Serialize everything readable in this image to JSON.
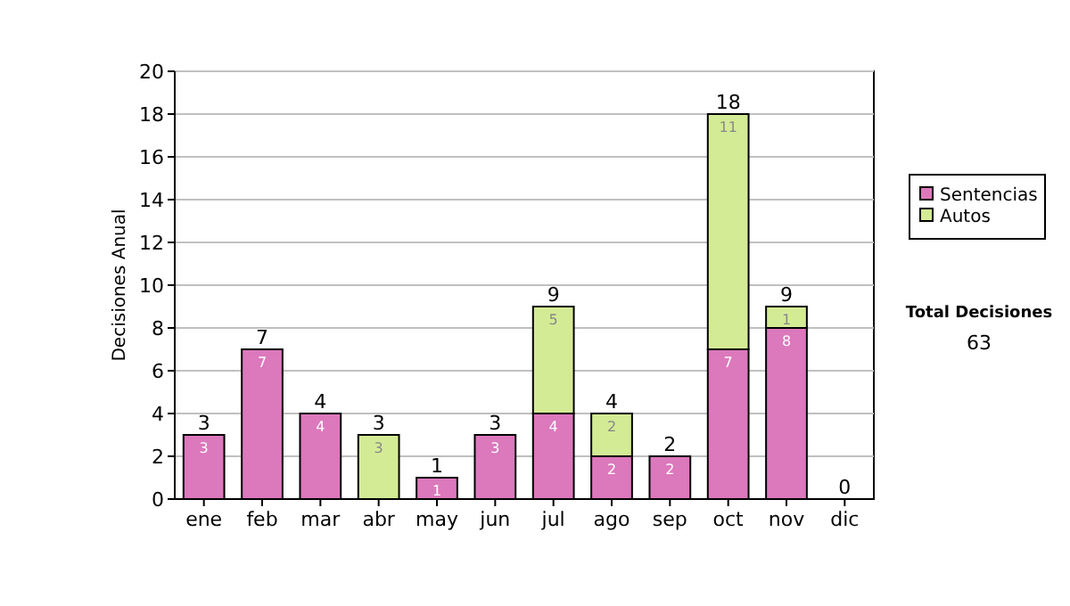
{
  "chart_data": {
    "type": "bar",
    "stacked": true,
    "ylabel": "Decisiones Anual",
    "categories": [
      "ene",
      "feb",
      "mar",
      "abr",
      "may",
      "jun",
      "jul",
      "ago",
      "sep",
      "oct",
      "nov",
      "dic"
    ],
    "series": [
      {
        "name": "Sentencias",
        "color": "#dc78bc",
        "values": [
          3,
          7,
          4,
          0,
          1,
          3,
          4,
          2,
          2,
          7,
          8,
          0
        ],
        "value_labels": [
          "3",
          "7",
          "4",
          null,
          "1",
          "3",
          "4",
          "2",
          "2",
          "7",
          "8",
          null
        ]
      },
      {
        "name": "Autos",
        "color": "#d4eb95",
        "values": [
          0,
          0,
          0,
          3,
          0,
          0,
          5,
          2,
          0,
          11,
          1,
          0
        ],
        "value_labels": [
          null,
          null,
          null,
          "3",
          null,
          null,
          "5",
          "2",
          null,
          "11",
          "1",
          null
        ]
      }
    ],
    "totals": [
      "3",
      "7",
      "4",
      "3",
      "1",
      "3",
      "9",
      "4",
      "2",
      "18",
      "9",
      "0"
    ],
    "ylim": [
      0,
      20
    ],
    "yticks": [
      0,
      2,
      4,
      6,
      8,
      10,
      12,
      14,
      16,
      18,
      20
    ],
    "grid": "y",
    "legend": "right",
    "annotations": [
      "Total Decisiones",
      "63"
    ]
  }
}
